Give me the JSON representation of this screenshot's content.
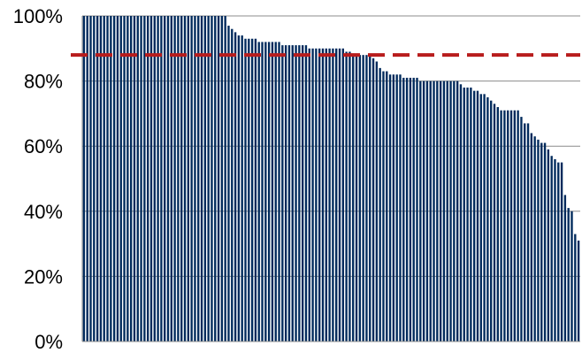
{
  "chart_data": {
    "type": "bar",
    "ylim": [
      0,
      100
    ],
    "y_ticks": [
      {
        "value": 0,
        "label": "0%"
      },
      {
        "value": 20,
        "label": "20%"
      },
      {
        "value": 40,
        "label": "40%"
      },
      {
        "value": 60,
        "label": "60%"
      },
      {
        "value": 80,
        "label": "80%"
      },
      {
        "value": 100,
        "label": "100%"
      }
    ],
    "grid": true,
    "reference_line": {
      "value": 88,
      "style": "dashed",
      "color": "#b81c1c"
    },
    "bar_color": "#002a5c",
    "values": [
      100,
      100,
      100,
      100,
      100,
      100,
      100,
      100,
      100,
      100,
      100,
      100,
      100,
      100,
      100,
      100,
      100,
      100,
      100,
      100,
      100,
      100,
      100,
      100,
      100,
      100,
      100,
      100,
      100,
      100,
      100,
      100,
      100,
      100,
      100,
      100,
      100,
      100,
      100,
      100,
      100,
      100,
      100,
      97,
      96,
      95,
      94,
      94,
      93,
      93,
      93,
      93,
      92,
      92,
      92,
      92,
      92,
      92,
      92,
      91,
      91,
      91,
      91,
      91,
      91,
      91,
      91,
      90,
      90,
      90,
      90,
      90,
      90,
      90,
      90,
      90,
      90,
      90,
      89,
      89,
      88,
      88,
      88,
      88,
      88,
      88,
      87,
      86,
      84,
      83,
      83,
      82,
      82,
      82,
      82,
      81,
      81,
      81,
      81,
      81,
      80,
      80,
      80,
      80,
      80,
      80,
      80,
      80,
      80,
      80,
      80,
      80,
      79,
      78,
      78,
      78,
      77,
      77,
      76,
      76,
      75,
      74,
      73,
      72,
      71,
      71,
      71,
      71,
      71,
      71,
      69,
      67,
      67,
      64,
      63,
      62,
      61,
      61,
      59,
      57,
      56,
      55,
      55,
      45,
      41,
      40,
      33,
      31
    ]
  }
}
